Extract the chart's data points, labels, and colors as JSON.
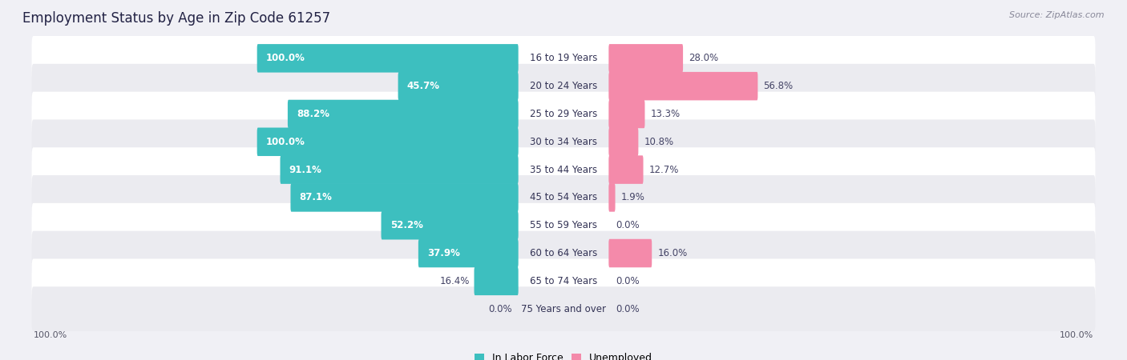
{
  "title": "Employment Status by Age in Zip Code 61257",
  "source": "Source: ZipAtlas.com",
  "categories": [
    "16 to 19 Years",
    "20 to 24 Years",
    "25 to 29 Years",
    "30 to 34 Years",
    "35 to 44 Years",
    "45 to 54 Years",
    "55 to 59 Years",
    "60 to 64 Years",
    "65 to 74 Years",
    "75 Years and over"
  ],
  "labor_force": [
    100.0,
    45.7,
    88.2,
    100.0,
    91.1,
    87.1,
    52.2,
    37.9,
    16.4,
    0.0
  ],
  "unemployed": [
    28.0,
    56.8,
    13.3,
    10.8,
    12.7,
    1.9,
    0.0,
    16.0,
    0.0,
    0.0
  ],
  "labor_force_color": "#3dbfbf",
  "unemployed_color": "#f48aaa",
  "row_color_odd": "#f0f0f5",
  "row_color_even": "#e8e8f0",
  "background_color": "#f0f0f5",
  "title_fontsize": 12,
  "source_fontsize": 8,
  "bar_label_fontsize": 8.5,
  "cat_label_fontsize": 8.5,
  "axis_label_fontsize": 8
}
